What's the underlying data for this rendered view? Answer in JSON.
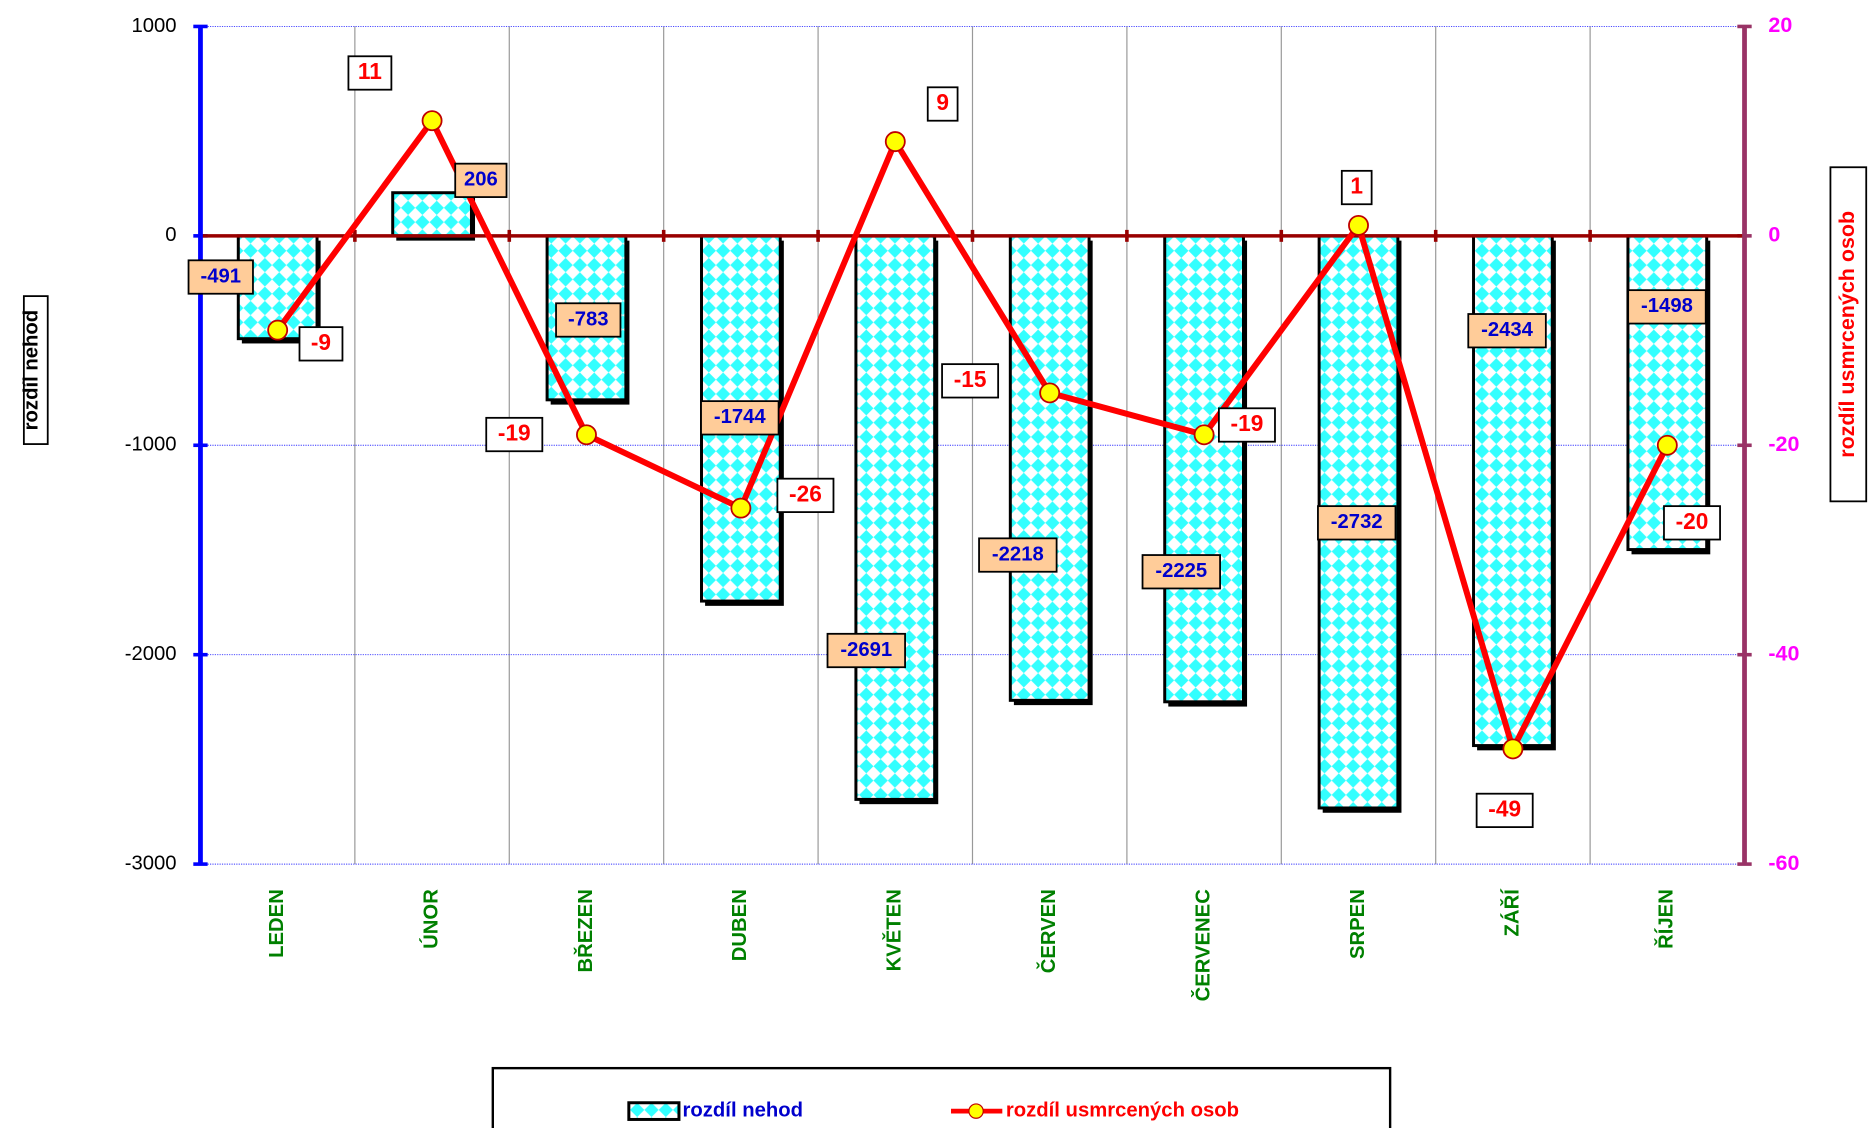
{
  "chart_data": {
    "type": "bar",
    "y_label": "rozdíl nehod",
    "y2_label": "rozdíl usmrcených osob",
    "categories": [
      "LEDEN",
      "ÚNOR",
      "BŘEZEN",
      "DUBEN",
      "KVĚTEN",
      "ČERVEN",
      "ČERVENEC",
      "SRPEN",
      "ZÁŘÍ",
      "ŘÍJEN"
    ],
    "series": [
      {
        "name": "rozdíl nehod",
        "type": "bar",
        "color": "#33ffff",
        "values": [
          -491,
          206,
          -783,
          -1744,
          -2691,
          -2218,
          -2225,
          -2732,
          -2434,
          -1498
        ]
      },
      {
        "name": "rozdíl usmrcených osob",
        "type": "line",
        "axis": "y2",
        "color": "#ff0000",
        "marker_color": "#ffff00",
        "values": [
          -9,
          11,
          -19,
          -26,
          9,
          -15,
          -19,
          1,
          -49,
          -20
        ]
      }
    ],
    "ylim": [
      -3000,
      1000
    ],
    "yticks": [
      -3000,
      -2000,
      -1000,
      0,
      1000
    ],
    "y2lim": [
      -60,
      20
    ],
    "y2ticks": [
      -60,
      -40,
      -20,
      0,
      20
    ],
    "grid": true,
    "legend": "bottom"
  }
}
